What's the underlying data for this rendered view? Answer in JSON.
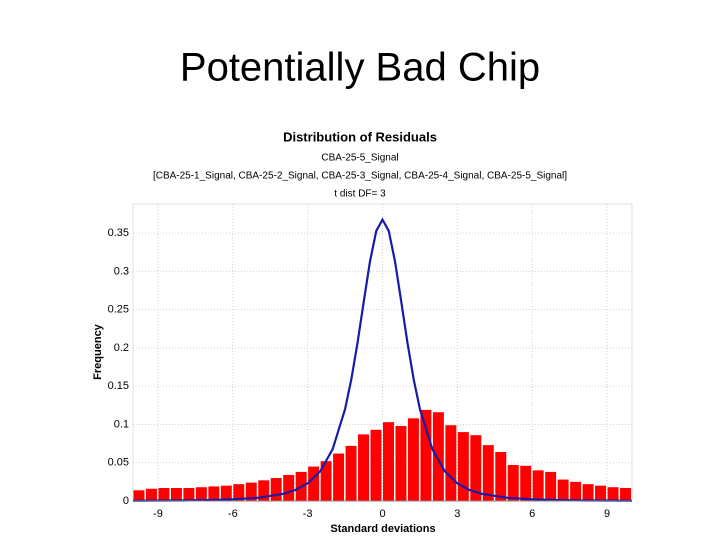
{
  "slide_title": "Potentially Bad Chip",
  "chart_data": {
    "type": "histogram",
    "title": "Distribution of Residuals",
    "subtitles": [
      "CBA-25-5_Signal",
      "[CBA-25-1_Signal, CBA-25-2_Signal, CBA-25-3_Signal, CBA-25-4_Signal, CBA-25-5_Signal]",
      "t dist DF= 3"
    ],
    "x_label": "Standard deviations",
    "y_label": "Frequency",
    "bins": [
      -10,
      -9.5,
      -9,
      -8.5,
      -8,
      -7.5,
      -7,
      -6.5,
      -6,
      -5.5,
      -5,
      -4.5,
      -4,
      -3.5,
      -3,
      -2.5,
      -2,
      -1.5,
      -1,
      -0.5,
      0,
      0.5,
      1,
      1.5,
      2,
      2.5,
      3,
      3.5,
      4,
      4.5,
      5,
      5.5,
      6,
      6.5,
      7,
      7.5,
      8,
      8.5,
      9,
      9.5,
      10
    ],
    "values": [
      0.014,
      0.016,
      0.017,
      0.017,
      0.017,
      0.018,
      0.019,
      0.02,
      0.022,
      0.024,
      0.027,
      0.03,
      0.034,
      0.038,
      0.045,
      0.052,
      0.062,
      0.072,
      0.087,
      0.093,
      0.103,
      0.098,
      0.108,
      0.119,
      0.116,
      0.099,
      0.09,
      0.086,
      0.073,
      0.064,
      0.047,
      0.046,
      0.04,
      0.038,
      0.028,
      0.025,
      0.022,
      0.02,
      0.018,
      0.017
    ],
    "color": "#ff0000",
    "overlay": {
      "type": "line",
      "color": "#1a1aaa",
      "x": [
        -10,
        -9,
        -8,
        -7,
        -6,
        -5,
        -4,
        -3.5,
        -3,
        -2.5,
        -2,
        -1.5,
        -1.25,
        -1,
        -0.75,
        -0.5,
        -0.25,
        0,
        0.25,
        0.5,
        0.75,
        1,
        1.25,
        1.5,
        2,
        2.5,
        3,
        3.5,
        4,
        5,
        6,
        7,
        8,
        9,
        10
      ],
      "values": [
        0.0003,
        0.0005,
        0.0007,
        0.0012,
        0.0022,
        0.0042,
        0.0092,
        0.0142,
        0.023,
        0.0387,
        0.0675,
        0.12,
        0.1589,
        0.2068,
        0.2607,
        0.3132,
        0.3528,
        0.3676,
        0.3528,
        0.3132,
        0.2607,
        0.2068,
        0.1589,
        0.12,
        0.0675,
        0.0387,
        0.023,
        0.0142,
        0.0092,
        0.0042,
        0.0022,
        0.0012,
        0.0007,
        0.0005,
        0.0003
      ]
    },
    "xlim": [
      -10,
      10
    ],
    "ylim": [
      0,
      0.388
    ],
    "xticks": [
      -9,
      -6,
      -3,
      0,
      3,
      6,
      9
    ],
    "yticks": [
      0,
      0.05,
      0.1,
      0.15,
      0.2,
      0.25,
      0.3,
      0.35
    ],
    "grid": true
  }
}
